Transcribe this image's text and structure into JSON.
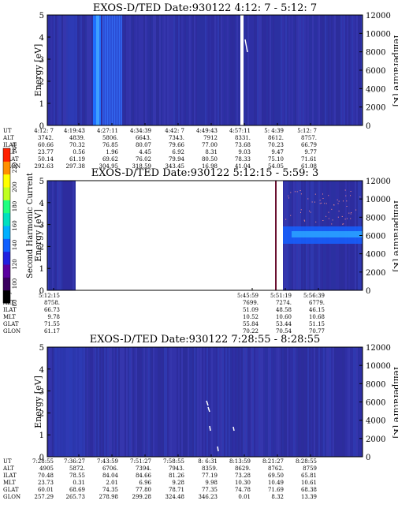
{
  "chart_data": [
    {
      "type": "heatmap",
      "title": "EXOS-D/TED   Date:930122   4:12: 7 - 5:12: 7",
      "ylabel_left": "Energy [eV]",
      "ylabel_right": "Temperature [K]",
      "yticks_left": [
        "0",
        "1",
        "2",
        "3",
        "4",
        "5"
      ],
      "yticks_right": [
        "0",
        "2000",
        "4000",
        "6000",
        "8000",
        "10000",
        "12000"
      ],
      "ylim": [
        0,
        5
      ],
      "ylim_right": [
        0,
        12000
      ],
      "table": {
        "row_labels": [
          "UT",
          "ALT",
          "ILAT",
          "MLT",
          "GLAT",
          "GLON"
        ],
        "columns": [
          [
            "4:12: 7",
            "3742.",
            "60.66",
            "23.77",
            "50.14",
            "292.63"
          ],
          [
            "4:19:43",
            "4839.",
            "70.32",
            "0.56",
            "61.19",
            "297.38"
          ],
          [
            "4:27:11",
            "5806.",
            "76.85",
            "1.96",
            "69.62",
            "304.95"
          ],
          [
            "4:34:39",
            "6643.",
            "80.07",
            "4.45",
            "76.02",
            "318.59"
          ],
          [
            "4:42: 7",
            "7343.",
            "79.66",
            "6.92",
            "79.94",
            "343.45"
          ],
          [
            "4:49:43",
            "7912",
            "77.00",
            "8.31",
            "80.50",
            "16.98"
          ],
          [
            "4:57:11",
            "8331.",
            "73.68",
            "9.03",
            "78.33",
            "41.04"
          ],
          [
            "5: 4:39",
            "8612.",
            "70.23",
            "9.47",
            "75.10",
            "54.05"
          ],
          [
            "5:12: 7",
            "8757.",
            "66.79",
            "9.77",
            "71.61",
            "61.08"
          ]
        ]
      }
    },
    {
      "type": "heatmap",
      "title": "EXOS-D/TED   Date:930122   5:12:15 - 5:59: 3",
      "ylabel_left": "Energy [eV]",
      "ylabel_right": "Temperature [K]",
      "yticks_left": [
        "0",
        "1",
        "2",
        "3",
        "4",
        "5"
      ],
      "yticks_right": [
        "0",
        "2000",
        "4000",
        "6000",
        "8000",
        "10000",
        "12000"
      ],
      "ylim": [
        0,
        5
      ],
      "ylim_right": [
        0,
        12000
      ],
      "colorbar": {
        "label": "Second Harmonic Current",
        "ticks": [
          "80",
          "100",
          "120",
          "140",
          "160",
          "180",
          "200",
          "220",
          "240"
        ],
        "range": [
          80,
          240
        ]
      },
      "table": {
        "row_labels": [
          "UT",
          "ALT",
          "ILAT",
          "MLT",
          "GLAT",
          "GLON"
        ],
        "columns": [
          [
            "5:12:15",
            "8758.",
            "66.73",
            "9.78",
            "71.55",
            "61.17"
          ],
          [
            "5:45:59",
            "7699.",
            "51.09",
            "10.52",
            "55.84",
            "70.22"
          ],
          [
            "5:51:19",
            "7274.",
            "48.58",
            "10.60",
            "53.44",
            "70.54"
          ],
          [
            "5:56:39",
            "6779.",
            "46.15",
            "10.68",
            "51.15",
            "70.77"
          ]
        ]
      }
    },
    {
      "type": "heatmap",
      "title": "EXOS-D/TED   Date:930122   7:28:55 - 8:28:55",
      "ylabel_left": "Energy [eV]",
      "ylabel_right": "Temperature [K]",
      "yticks_left": [
        "0",
        "1",
        "2",
        "3",
        "4",
        "5"
      ],
      "yticks_right": [
        "0",
        "2000",
        "4000",
        "6000",
        "8000",
        "10000",
        "12000"
      ],
      "ylim": [
        0,
        5
      ],
      "ylim_right": [
        0,
        12000
      ],
      "table": {
        "row_labels": [
          "UT",
          "ALT",
          "ILAT",
          "MLT",
          "GLAT",
          "GLON"
        ],
        "columns": [
          [
            "7:28:55",
            "4905",
            "70.48",
            "23.73",
            "60.01",
            "257.29"
          ],
          [
            "7:36:27",
            "5872.",
            "78.55",
            "0.31",
            "68.69",
            "265.73"
          ],
          [
            "7:43:59",
            "6706.",
            "84.04",
            "2.01",
            "74.35",
            "278.98"
          ],
          [
            "7:51:27",
            "7394.",
            "84.66",
            "6.96",
            "77.80",
            "299.28"
          ],
          [
            "7:58:55",
            "7943.",
            "81.26",
            "9.28",
            "78.71",
            "324.48"
          ],
          [
            "8: 6:31",
            "8359.",
            "77.19",
            "9.98",
            "77.35",
            "346.23"
          ],
          [
            "8:13:59",
            "8629.",
            "73.28",
            "10.30",
            "74.78",
            "0.01"
          ],
          [
            "8:21:27",
            "8762.",
            "69.50",
            "10.49",
            "71.69",
            "8.32"
          ],
          [
            "8:28:55",
            "8759",
            "65.81",
            "10.61",
            "68.38",
            "13.39"
          ]
        ]
      }
    }
  ]
}
